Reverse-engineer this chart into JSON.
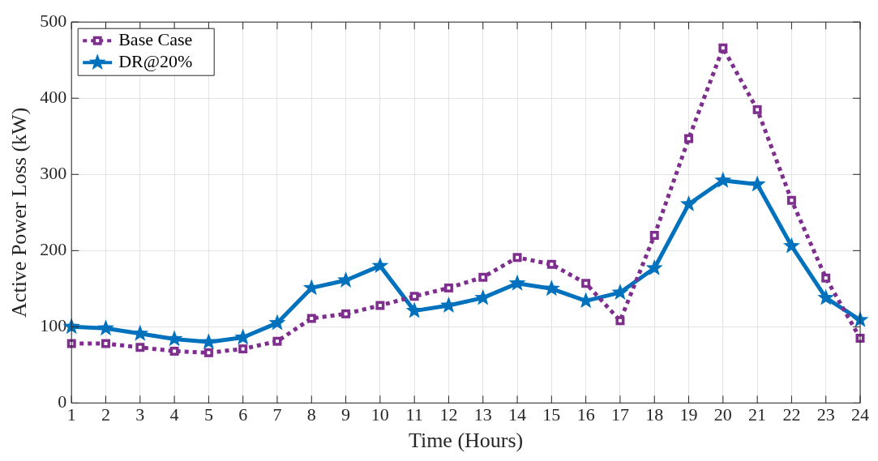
{
  "chart_data": {
    "type": "line",
    "xlabel": "Time (Hours)",
    "ylabel": "Active Power Loss (kW)",
    "x": [
      1,
      2,
      3,
      4,
      5,
      6,
      7,
      8,
      9,
      10,
      11,
      12,
      13,
      14,
      15,
      16,
      17,
      18,
      19,
      20,
      21,
      22,
      23,
      24
    ],
    "series": [
      {
        "name": "Base Case",
        "color": "#7e2f8e",
        "marker": "square",
        "line_style": "dotted",
        "values": [
          78,
          78,
          73,
          68,
          66,
          71,
          81,
          111,
          117,
          128,
          140,
          151,
          165,
          191,
          182,
          157,
          108,
          220,
          347,
          466,
          385,
          266,
          164,
          85
        ]
      },
      {
        "name": "DR@20%",
        "color": "#0072bd",
        "marker": "star",
        "line_style": "solid",
        "values": [
          100,
          98,
          91,
          84,
          80,
          86,
          105,
          151,
          161,
          180,
          121,
          128,
          138,
          157,
          150,
          134,
          145,
          177,
          261,
          292,
          287,
          206,
          138,
          109
        ]
      }
    ],
    "xlim": [
      1,
      24
    ],
    "xticks": [
      1,
      2,
      3,
      4,
      5,
      6,
      7,
      8,
      9,
      10,
      11,
      12,
      13,
      14,
      15,
      16,
      17,
      18,
      19,
      20,
      21,
      22,
      23,
      24
    ],
    "ylim": [
      0,
      500
    ],
    "yticks": [
      0,
      100,
      200,
      300,
      400,
      500
    ],
    "grid": true,
    "legend": "top left"
  }
}
